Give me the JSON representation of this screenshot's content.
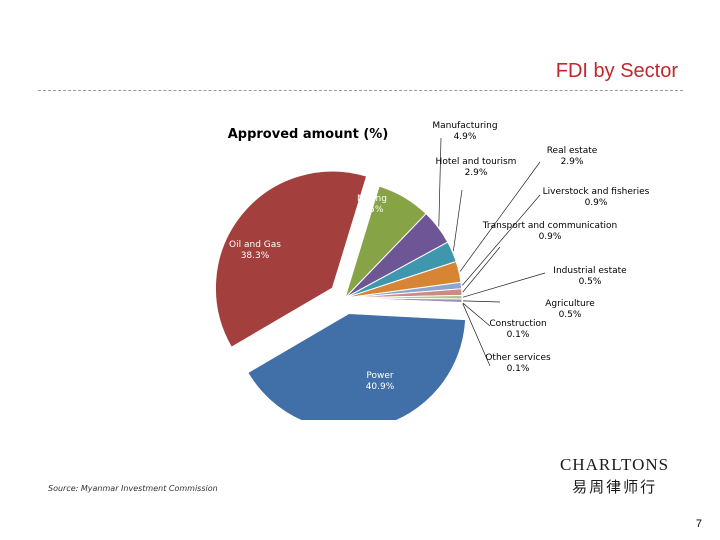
{
  "slide": {
    "title": "FDI by Sector",
    "source": "Source: Myanmar Investment Commission",
    "page_number": "7",
    "logo": {
      "name": "CHARLTONS",
      "cjk": "易周律师行"
    }
  },
  "chart_data": {
    "type": "pie",
    "title": "Approved amount (%)",
    "slices": [
      {
        "label": "Power",
        "value_label": "40.9%",
        "value": 40.9,
        "color": "#416fa8",
        "exploded": true
      },
      {
        "label": "Oil and Gas",
        "value_label": "38.3%",
        "value": 38.3,
        "color": "#a3403e",
        "exploded": true
      },
      {
        "label": "Mining",
        "value_label": "7.5%",
        "value": 7.5,
        "color": "#86a346",
        "exploded": false
      },
      {
        "label": "Manufacturing",
        "value_label": "4.9%",
        "value": 4.9,
        "color": "#6e5595",
        "exploded": false
      },
      {
        "label": "Hotel and tourism",
        "value_label": "2.9%",
        "value": 2.9,
        "color": "#3e97ad",
        "exploded": false
      },
      {
        "label": "Real estate",
        "value_label": "2.9%",
        "value": 2.9,
        "color": "#d78534",
        "exploded": false
      },
      {
        "label": "Liverstock and fisheries",
        "value_label": "0.9%",
        "value": 0.9,
        "color": "#8aa5cf",
        "exploded": false
      },
      {
        "label": "Transport and communication",
        "value_label": "0.9%",
        "value": 0.9,
        "color": "#cf8884",
        "exploded": false
      },
      {
        "label": "Industrial estate",
        "value_label": "0.5%",
        "value": 0.5,
        "color": "#b0c68b",
        "exploded": false
      },
      {
        "label": "Agriculture",
        "value_label": "0.5%",
        "value": 0.5,
        "color": "#9d8fb8",
        "exploded": false
      },
      {
        "label": "Construction",
        "value_label": "0.1%",
        "value": 0.1,
        "color": "#87c3d3",
        "exploded": false
      },
      {
        "label": "Other services",
        "value_label": "0.1%",
        "value": 0.1,
        "color": "#edb07f",
        "exploded": false
      }
    ]
  }
}
